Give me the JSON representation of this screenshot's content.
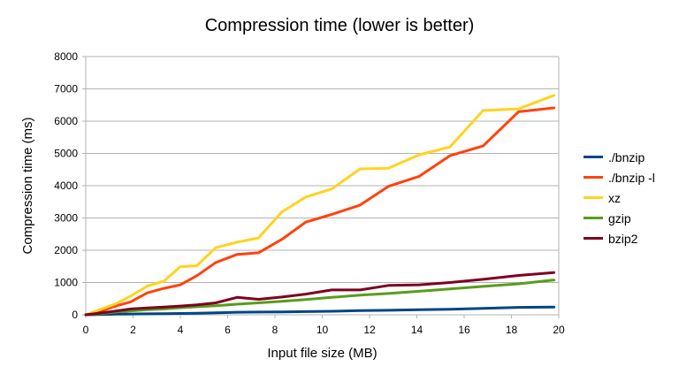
{
  "chart_data": {
    "type": "line",
    "title": "Compression time (lower is better)",
    "xlabel": "Input file size (MB)",
    "ylabel": "Compression time (ms)",
    "xlim": [
      0,
      20
    ],
    "ylim": [
      0,
      8000
    ],
    "xticks": [
      0,
      2,
      4,
      6,
      8,
      10,
      12,
      14,
      16,
      18,
      20
    ],
    "yticks": [
      0,
      1000,
      2000,
      3000,
      4000,
      5000,
      6000,
      7000,
      8000
    ],
    "grid": "horizontal",
    "legend_position": "right",
    "x": [
      0,
      0.7,
      1.3,
      1.9,
      2.6,
      3.3,
      4.0,
      4.7,
      5.5,
      6.4,
      7.3,
      8.3,
      9.3,
      10.4,
      11.6,
      12.8,
      14.1,
      15.4,
      16.8,
      18.3,
      19.8
    ],
    "series": [
      {
        "name": "./bnzip",
        "color": "#004586",
        "values": [
          0,
          10,
          20,
          25,
          30,
          35,
          40,
          50,
          60,
          80,
          85,
          90,
          100,
          110,
          130,
          140,
          160,
          170,
          200,
          230,
          240
        ]
      },
      {
        "name": "./bnzip -l",
        "color": "#ff420e",
        "values": [
          0,
          130,
          280,
          400,
          680,
          820,
          930,
          1210,
          1620,
          1870,
          1920,
          2340,
          2870,
          3110,
          3400,
          3980,
          4290,
          4930,
          5230,
          6290,
          6410
        ]
      },
      {
        "name": "xz",
        "color": "#ffd320",
        "values": [
          0,
          190,
          350,
          580,
          890,
          1040,
          1490,
          1520,
          2080,
          2250,
          2380,
          3190,
          3650,
          3900,
          4520,
          4540,
          4960,
          5200,
          6330,
          6380,
          6800
        ]
      },
      {
        "name": "gzip",
        "color": "#579d1c",
        "values": [
          0,
          40,
          90,
          120,
          160,
          180,
          220,
          250,
          280,
          330,
          370,
          420,
          470,
          540,
          610,
          660,
          730,
          800,
          880,
          960,
          1080
        ]
      },
      {
        "name": "bzip2",
        "color": "#7e0021",
        "values": [
          0,
          60,
          120,
          180,
          210,
          240,
          270,
          310,
          370,
          540,
          480,
          550,
          640,
          770,
          770,
          910,
          930,
          1000,
          1100,
          1220,
          1310
        ]
      }
    ]
  }
}
